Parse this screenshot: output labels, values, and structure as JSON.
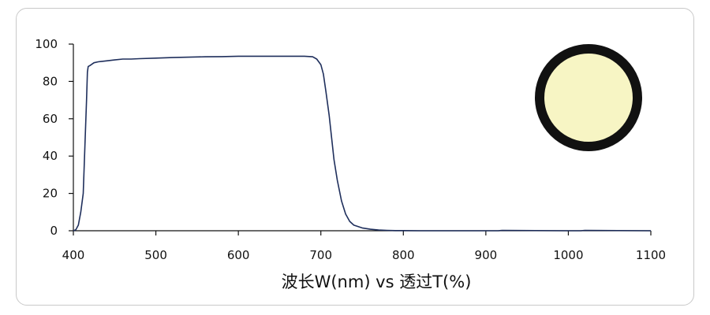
{
  "chart_data": {
    "type": "line",
    "title": "",
    "xlabel": "波长W(nm) vs 透过T(%)",
    "ylabel": "",
    "xlim": [
      400,
      1100
    ],
    "ylim": [
      0,
      100
    ],
    "xticks": [
      400,
      500,
      600,
      700,
      800,
      900,
      1000,
      1100
    ],
    "yticks": [
      0,
      20,
      40,
      60,
      80,
      100
    ],
    "grid": false,
    "series": [
      {
        "color": "#1f2f5c",
        "x": [
          400,
          403,
          406,
          409,
          412,
          414,
          416,
          417,
          418,
          420,
          425,
          430,
          440,
          450,
          460,
          470,
          480,
          500,
          520,
          540,
          560,
          580,
          600,
          620,
          640,
          660,
          680,
          690,
          695,
          700,
          703,
          706,
          710,
          713,
          716,
          720,
          725,
          730,
          735,
          740,
          750,
          760,
          770,
          780,
          790,
          800,
          820,
          850,
          900,
          915,
          920,
          1000,
          1015,
          1020,
          1100
        ],
        "y": [
          0,
          0.5,
          3,
          10,
          20,
          45,
          70,
          85,
          88,
          88.5,
          90,
          90.5,
          91,
          91.5,
          92,
          92,
          92.2,
          92.5,
          92.8,
          93,
          93.2,
          93.3,
          93.5,
          93.5,
          93.5,
          93.5,
          93.5,
          93.2,
          92,
          89,
          84,
          75,
          62,
          50,
          38,
          27,
          16,
          9,
          5,
          3,
          1.5,
          0.8,
          0.4,
          0.2,
          0.1,
          0.1,
          0,
          0,
          0,
          0,
          0.2,
          0,
          0,
          0.2,
          0
        ]
      }
    ]
  },
  "inset": {
    "icon": "filter-disc-icon",
    "fill_color": "#f7f5c4",
    "ring_color": "#111111"
  }
}
